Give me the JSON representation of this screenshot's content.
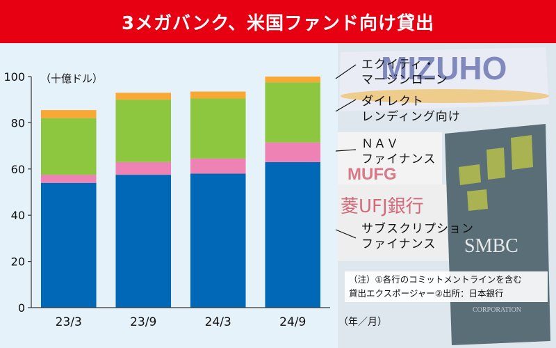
{
  "banner": {
    "title": "3メガバンク、米国ファンド向け貸出"
  },
  "photo_overlay": {
    "logos": [
      {
        "text": "MIZUHO",
        "color": "#2b3a8f"
      },
      {
        "text": "MUFG",
        "color": "#c0001b"
      },
      {
        "text": "菱UFJ銀行",
        "color": "#c0001b"
      },
      {
        "text": "SMBC",
        "color": "#ffffff"
      },
      {
        "text": "CORPORATION",
        "color": "#d8dce0"
      }
    ]
  },
  "chart_data": {
    "type": "bar",
    "stacked": true,
    "categories": [
      "23/3",
      "23/9",
      "24/3",
      "24/9"
    ],
    "series": [
      {
        "name": "サブスクリプションファイナンス",
        "color": "#0068b7",
        "values": [
          54,
          57.5,
          58,
          63
        ]
      },
      {
        "name": "NAVファイナンス",
        "color": "#ee82b4",
        "values": [
          3.5,
          5.5,
          6.5,
          8.5
        ]
      },
      {
        "name": "ダイレクトレンディング向け",
        "color": "#8dc63f",
        "values": [
          24.5,
          27,
          26,
          26
        ]
      },
      {
        "name": "エクイティ・マージンローン",
        "color": "#f8a834",
        "values": [
          3.5,
          3,
          3,
          2.5
        ]
      }
    ],
    "ylim": [
      0,
      100
    ],
    "yticks": [
      0,
      20,
      40,
      60,
      80,
      100
    ],
    "unit_label": "（十億ドル）",
    "x_unit_label": "（年／月）",
    "grid": false
  },
  "legend": {
    "equity_line1": "エクイティ・",
    "equity_line2": "マージンローン",
    "direct_line1": "ダイレクト",
    "direct_line2": "レンディング向け",
    "nav_line1": "ＮＡＶ",
    "nav_line2": "ファイナンス",
    "subs_line1": "サブスクリプション",
    "subs_line2": "ファイナンス"
  },
  "note": {
    "line1": "（注）①各行のコミットメントラインを含む",
    "line2": "貸出エクスポージャー②出所：日本銀行"
  }
}
